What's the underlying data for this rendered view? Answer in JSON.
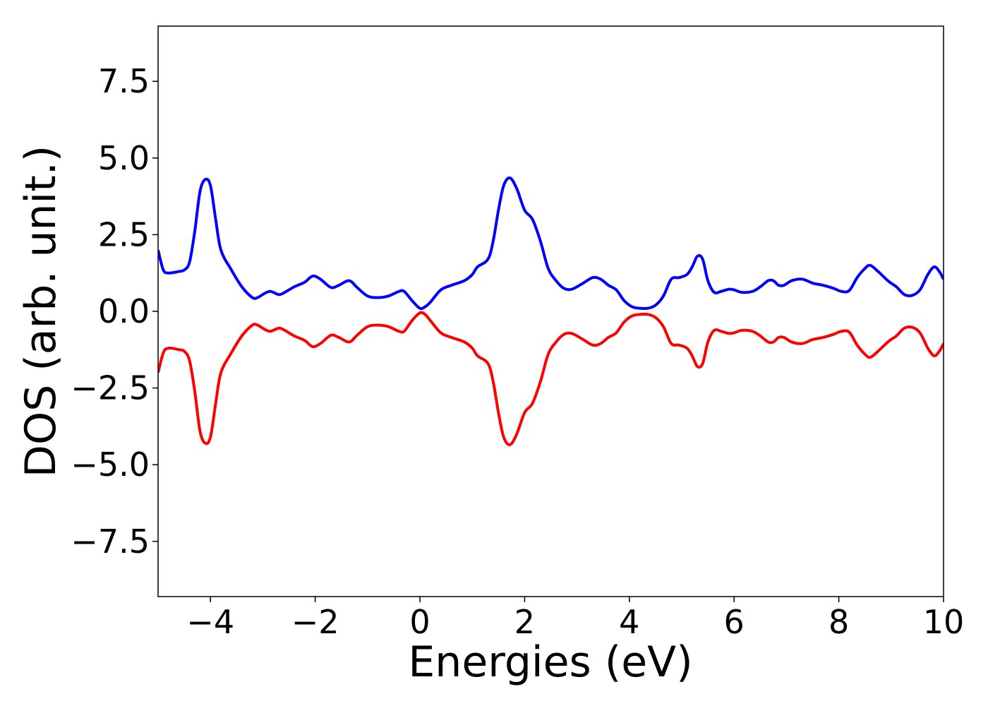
{
  "chart_data": {
    "type": "line",
    "title": "",
    "xlabel": "Energies (eV)",
    "ylabel": "DOS (arb. unit.)",
    "xlim": [
      -5,
      10
    ],
    "ylim": [
      -9.3,
      9.3
    ],
    "grid": false,
    "legend": "none",
    "x_ticks": [
      {
        "value": -4,
        "label": "−4"
      },
      {
        "value": -2,
        "label": "−2"
      },
      {
        "value": 0,
        "label": "0"
      },
      {
        "value": 2,
        "label": "2"
      },
      {
        "value": 4,
        "label": "4"
      },
      {
        "value": 6,
        "label": "6"
      },
      {
        "value": 8,
        "label": "8"
      },
      {
        "value": 10,
        "label": "10"
      }
    ],
    "y_ticks": [
      {
        "value": 7.5,
        "label": "7.5"
      },
      {
        "value": 5.0,
        "label": "5.0"
      },
      {
        "value": 2.5,
        "label": "2.5"
      },
      {
        "value": 0.0,
        "label": "0.0"
      },
      {
        "value": -2.5,
        "label": "−2.5"
      },
      {
        "value": -5.0,
        "label": "−5.0"
      },
      {
        "value": -7.5,
        "label": "−7.5"
      }
    ],
    "series": [
      {
        "color": "#0000ff",
        "points": [
          [
            -5.0,
            2.0
          ],
          [
            -4.9,
            1.35
          ],
          [
            -4.8,
            1.25
          ],
          [
            -4.6,
            1.3
          ],
          [
            -4.5,
            1.35
          ],
          [
            -4.4,
            1.6
          ],
          [
            -4.3,
            2.6
          ],
          [
            -4.2,
            3.9
          ],
          [
            -4.1,
            4.3
          ],
          [
            -4.0,
            4.1
          ],
          [
            -3.9,
            3.0
          ],
          [
            -3.8,
            2.0
          ],
          [
            -3.6,
            1.35
          ],
          [
            -3.4,
            0.8
          ],
          [
            -3.2,
            0.45
          ],
          [
            -3.1,
            0.45
          ],
          [
            -2.95,
            0.6
          ],
          [
            -2.85,
            0.65
          ],
          [
            -2.7,
            0.55
          ],
          [
            -2.6,
            0.6
          ],
          [
            -2.4,
            0.8
          ],
          [
            -2.2,
            0.95
          ],
          [
            -2.05,
            1.15
          ],
          [
            -1.9,
            1.05
          ],
          [
            -1.7,
            0.78
          ],
          [
            -1.55,
            0.85
          ],
          [
            -1.35,
            1.0
          ],
          [
            -1.2,
            0.78
          ],
          [
            -1.0,
            0.5
          ],
          [
            -0.8,
            0.45
          ],
          [
            -0.6,
            0.5
          ],
          [
            -0.4,
            0.65
          ],
          [
            -0.3,
            0.65
          ],
          [
            -0.15,
            0.35
          ],
          [
            0.0,
            0.1
          ],
          [
            0.1,
            0.15
          ],
          [
            0.2,
            0.3
          ],
          [
            0.4,
            0.7
          ],
          [
            0.6,
            0.85
          ],
          [
            0.85,
            1.0
          ],
          [
            1.0,
            1.2
          ],
          [
            1.1,
            1.45
          ],
          [
            1.3,
            1.7
          ],
          [
            1.4,
            2.3
          ],
          [
            1.5,
            3.3
          ],
          [
            1.6,
            4.1
          ],
          [
            1.72,
            4.35
          ],
          [
            1.85,
            4.0
          ],
          [
            2.0,
            3.3
          ],
          [
            2.15,
            3.0
          ],
          [
            2.3,
            2.3
          ],
          [
            2.45,
            1.4
          ],
          [
            2.6,
            1.0
          ],
          [
            2.75,
            0.75
          ],
          [
            2.9,
            0.72
          ],
          [
            3.1,
            0.9
          ],
          [
            3.3,
            1.1
          ],
          [
            3.45,
            1.05
          ],
          [
            3.6,
            0.85
          ],
          [
            3.75,
            0.7
          ],
          [
            3.9,
            0.35
          ],
          [
            4.05,
            0.15
          ],
          [
            4.2,
            0.1
          ],
          [
            4.35,
            0.1
          ],
          [
            4.5,
            0.2
          ],
          [
            4.65,
            0.5
          ],
          [
            4.8,
            1.05
          ],
          [
            4.95,
            1.1
          ],
          [
            5.1,
            1.2
          ],
          [
            5.2,
            1.45
          ],
          [
            5.3,
            1.8
          ],
          [
            5.4,
            1.7
          ],
          [
            5.5,
            1.0
          ],
          [
            5.62,
            0.62
          ],
          [
            5.75,
            0.65
          ],
          [
            5.9,
            0.72
          ],
          [
            6.0,
            0.7
          ],
          [
            6.15,
            0.62
          ],
          [
            6.35,
            0.65
          ],
          [
            6.5,
            0.8
          ],
          [
            6.65,
            1.0
          ],
          [
            6.75,
            1.0
          ],
          [
            6.85,
            0.85
          ],
          [
            6.95,
            0.85
          ],
          [
            7.1,
            1.0
          ],
          [
            7.3,
            1.05
          ],
          [
            7.5,
            0.92
          ],
          [
            7.7,
            0.85
          ],
          [
            7.9,
            0.75
          ],
          [
            8.05,
            0.65
          ],
          [
            8.2,
            0.68
          ],
          [
            8.35,
            1.1
          ],
          [
            8.5,
            1.4
          ],
          [
            8.6,
            1.5
          ],
          [
            8.75,
            1.3
          ],
          [
            8.95,
            0.98
          ],
          [
            9.1,
            0.8
          ],
          [
            9.25,
            0.55
          ],
          [
            9.4,
            0.52
          ],
          [
            9.55,
            0.7
          ],
          [
            9.7,
            1.2
          ],
          [
            9.82,
            1.45
          ],
          [
            9.92,
            1.3
          ],
          [
            10.0,
            1.05
          ]
        ]
      },
      {
        "color": "#ff0000",
        "points": [
          [
            -5.0,
            -2.0
          ],
          [
            -4.9,
            -1.35
          ],
          [
            -4.8,
            -1.2
          ],
          [
            -4.6,
            -1.25
          ],
          [
            -4.5,
            -1.3
          ],
          [
            -4.4,
            -1.6
          ],
          [
            -4.3,
            -2.6
          ],
          [
            -4.2,
            -3.9
          ],
          [
            -4.1,
            -4.3
          ],
          [
            -4.0,
            -4.1
          ],
          [
            -3.9,
            -3.0
          ],
          [
            -3.8,
            -2.0
          ],
          [
            -3.6,
            -1.35
          ],
          [
            -3.4,
            -0.8
          ],
          [
            -3.2,
            -0.45
          ],
          [
            -3.1,
            -0.45
          ],
          [
            -2.95,
            -0.6
          ],
          [
            -2.85,
            -0.65
          ],
          [
            -2.7,
            -0.55
          ],
          [
            -2.6,
            -0.6
          ],
          [
            -2.4,
            -0.8
          ],
          [
            -2.2,
            -0.95
          ],
          [
            -2.05,
            -1.15
          ],
          [
            -1.9,
            -1.05
          ],
          [
            -1.7,
            -0.78
          ],
          [
            -1.55,
            -0.85
          ],
          [
            -1.35,
            -1.0
          ],
          [
            -1.2,
            -0.78
          ],
          [
            -1.0,
            -0.5
          ],
          [
            -0.8,
            -0.45
          ],
          [
            -0.6,
            -0.5
          ],
          [
            -0.4,
            -0.65
          ],
          [
            -0.3,
            -0.65
          ],
          [
            -0.15,
            -0.3
          ],
          [
            0.0,
            -0.05
          ],
          [
            0.1,
            -0.1
          ],
          [
            0.2,
            -0.3
          ],
          [
            0.4,
            -0.7
          ],
          [
            0.6,
            -0.85
          ],
          [
            0.85,
            -1.0
          ],
          [
            1.0,
            -1.2
          ],
          [
            1.1,
            -1.45
          ],
          [
            1.3,
            -1.7
          ],
          [
            1.4,
            -2.3
          ],
          [
            1.5,
            -3.3
          ],
          [
            1.6,
            -4.1
          ],
          [
            1.72,
            -4.35
          ],
          [
            1.85,
            -4.0
          ],
          [
            2.0,
            -3.3
          ],
          [
            2.15,
            -3.0
          ],
          [
            2.3,
            -2.3
          ],
          [
            2.45,
            -1.4
          ],
          [
            2.6,
            -1.0
          ],
          [
            2.75,
            -0.75
          ],
          [
            2.9,
            -0.72
          ],
          [
            3.1,
            -0.9
          ],
          [
            3.3,
            -1.1
          ],
          [
            3.45,
            -1.05
          ],
          [
            3.6,
            -0.85
          ],
          [
            3.75,
            -0.7
          ],
          [
            3.9,
            -0.35
          ],
          [
            4.05,
            -0.15
          ],
          [
            4.2,
            -0.1
          ],
          [
            4.35,
            -0.1
          ],
          [
            4.5,
            -0.2
          ],
          [
            4.65,
            -0.5
          ],
          [
            4.8,
            -1.05
          ],
          [
            4.95,
            -1.1
          ],
          [
            5.1,
            -1.2
          ],
          [
            5.2,
            -1.45
          ],
          [
            5.3,
            -1.8
          ],
          [
            5.4,
            -1.7
          ],
          [
            5.5,
            -1.0
          ],
          [
            5.62,
            -0.62
          ],
          [
            5.75,
            -0.65
          ],
          [
            5.9,
            -0.72
          ],
          [
            6.0,
            -0.7
          ],
          [
            6.15,
            -0.62
          ],
          [
            6.35,
            -0.65
          ],
          [
            6.5,
            -0.8
          ],
          [
            6.65,
            -1.0
          ],
          [
            6.75,
            -1.0
          ],
          [
            6.85,
            -0.85
          ],
          [
            6.95,
            -0.85
          ],
          [
            7.1,
            -1.0
          ],
          [
            7.3,
            -1.05
          ],
          [
            7.5,
            -0.92
          ],
          [
            7.7,
            -0.85
          ],
          [
            7.9,
            -0.75
          ],
          [
            8.05,
            -0.65
          ],
          [
            8.2,
            -0.68
          ],
          [
            8.35,
            -1.1
          ],
          [
            8.5,
            -1.4
          ],
          [
            8.6,
            -1.5
          ],
          [
            8.75,
            -1.3
          ],
          [
            8.95,
            -0.98
          ],
          [
            9.1,
            -0.8
          ],
          [
            9.25,
            -0.55
          ],
          [
            9.4,
            -0.52
          ],
          [
            9.55,
            -0.7
          ],
          [
            9.7,
            -1.2
          ],
          [
            9.82,
            -1.45
          ],
          [
            9.92,
            -1.3
          ],
          [
            10.0,
            -1.05
          ]
        ]
      }
    ]
  }
}
